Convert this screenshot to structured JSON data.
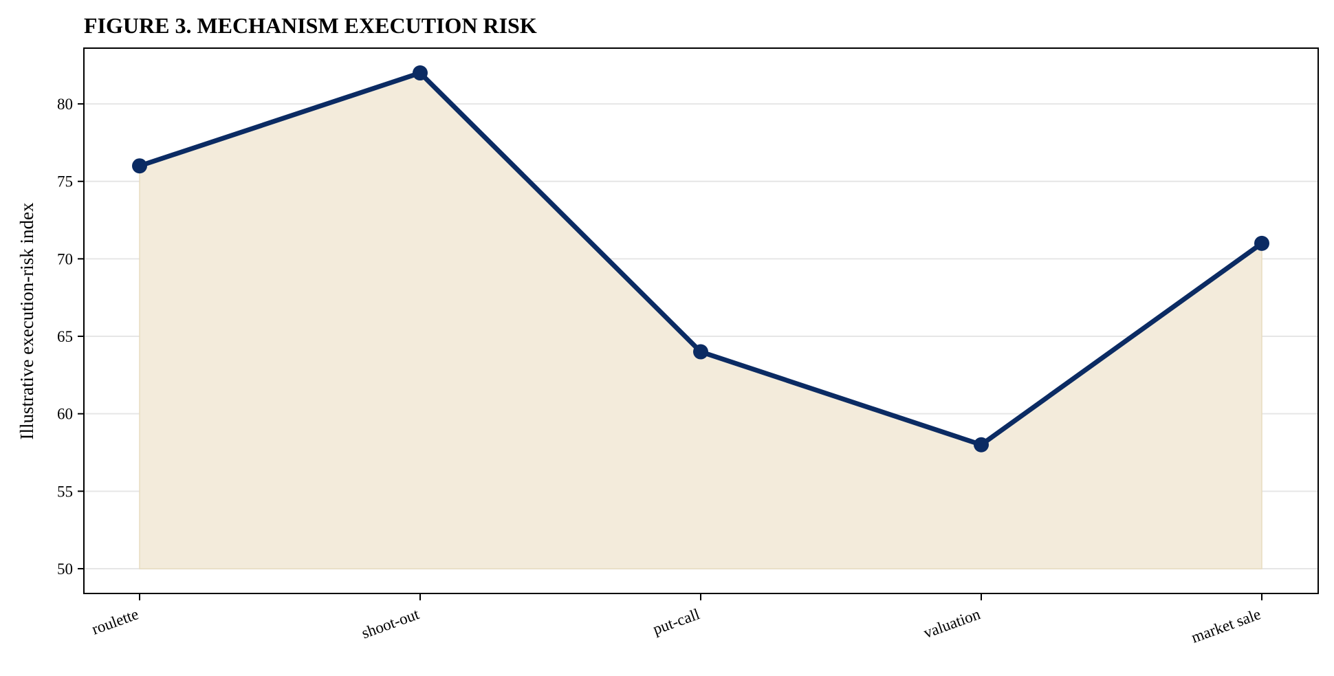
{
  "chart_data": {
    "type": "area",
    "title": "FIGURE 3. MECHANISM EXECUTION RISK",
    "xlabel": "",
    "ylabel": "Illustrative execution-risk index",
    "categories": [
      "roulette",
      "shoot-out",
      "put-call",
      "valuation",
      "market sale"
    ],
    "series": [
      {
        "values": [
          76,
          82,
          64,
          58,
          71
        ],
        "line_color": "#0b2b63",
        "fill_color": "#f3ebdb"
      }
    ],
    "area_baseline": 50,
    "ylim": [
      48.4,
      83.6
    ],
    "yticks": [
      50,
      55,
      60,
      65,
      70,
      75,
      80
    ],
    "grid": {
      "y": true,
      "x": false
    },
    "legend": "none"
  }
}
